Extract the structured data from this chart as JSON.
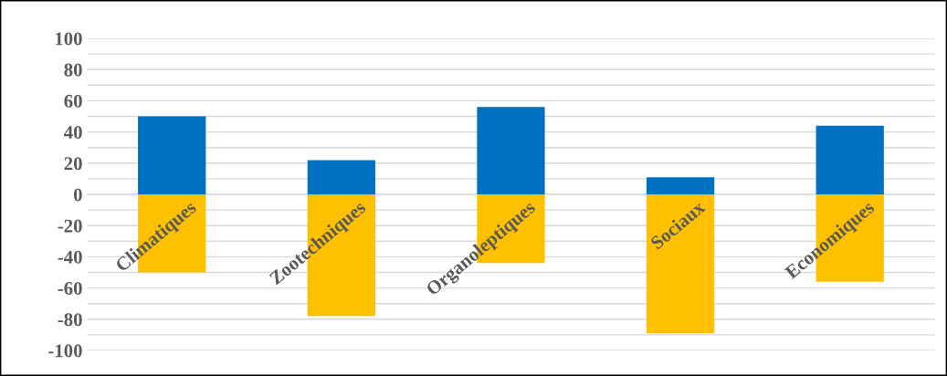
{
  "chart_data": {
    "type": "bar",
    "stacked": true,
    "categories": [
      "Climatiques",
      "Zootechniques",
      "Organoleptiques",
      "Sociaux",
      "Economiques"
    ],
    "series": [
      {
        "color": "#0070c0",
        "values": [
          50,
          22,
          56,
          11,
          44
        ]
      },
      {
        "color": "#ffc000",
        "values": [
          -50,
          -78,
          -44,
          -89,
          -56
        ]
      }
    ],
    "ylim": [
      -100,
      100
    ],
    "yticks": [
      -100,
      {
        "value": -90,
        "label": null
      },
      -80,
      {
        "value": -70,
        "label": null
      },
      -60,
      {
        "value": -50,
        "label": null
      },
      -40,
      {
        "value": -30,
        "label": null
      },
      -20,
      {
        "value": -10,
        "label": null
      },
      0,
      {
        "value": 10,
        "label": null
      },
      20,
      {
        "value": 30,
        "label": null
      },
      40,
      {
        "value": 50,
        "label": null
      },
      60,
      {
        "value": 70,
        "label": null
      },
      80,
      {
        "value": 90,
        "label": null
      },
      100
    ],
    "grid": "y",
    "legend": false
  }
}
